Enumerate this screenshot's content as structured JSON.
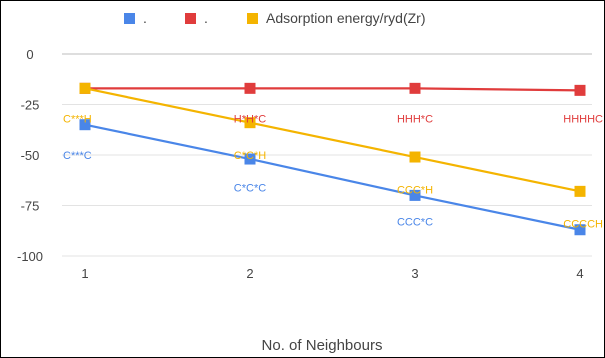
{
  "chart_data": {
    "type": "line",
    "title": "",
    "xlabel": "No. of Neighbours",
    "ylabel": "",
    "x": [
      1,
      2,
      3,
      4
    ],
    "ylim": [
      -100,
      0
    ],
    "yticks": [
      0,
      -25,
      -50,
      -75,
      -100
    ],
    "grid": "horizontal",
    "legend_position": "top",
    "series": [
      {
        "name": ".",
        "color": "#4a86e8",
        "values": [
          -35,
          -52,
          -70,
          -87
        ]
      },
      {
        "name": ".",
        "color": "#e03c3c",
        "values": [
          -17,
          -17,
          -17,
          -18
        ]
      },
      {
        "name": "Adsorption energy/ryd(Zr)",
        "color": "#f4b400",
        "values": [
          -17,
          -34,
          -51,
          -68
        ]
      }
    ],
    "annotations": [
      {
        "text": "C***H",
        "x": 1,
        "y": -32,
        "color": "#f4b400"
      },
      {
        "text": "C***C",
        "x": 1,
        "y": -50,
        "color": "#4a86e8"
      },
      {
        "text": "H*H*C",
        "x": 2,
        "y": -32,
        "color": "#e03c3c"
      },
      {
        "text": "C*C*H",
        "x": 2,
        "y": -50,
        "color": "#f4b400"
      },
      {
        "text": "C*C*C",
        "x": 2,
        "y": -66,
        "color": "#4a86e8"
      },
      {
        "text": "HHH*C",
        "x": 3,
        "y": -32,
        "color": "#e03c3c"
      },
      {
        "text": "CCC*H",
        "x": 3,
        "y": -67,
        "color": "#f4b400"
      },
      {
        "text": "CCC*C",
        "x": 3,
        "y": -83,
        "color": "#4a86e8"
      },
      {
        "text": "HHHHC",
        "x": 4,
        "y": -32,
        "color": "#e03c3c"
      },
      {
        "text": "CCCCH",
        "x": 4,
        "y": -84,
        "color": "#f4b400"
      }
    ]
  }
}
